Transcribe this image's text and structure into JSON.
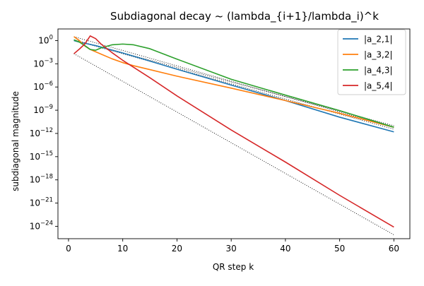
{
  "chart_data": {
    "type": "line",
    "title": "Subdiagonal decay ~ (lambda_{i+1}/lambda_i)^k",
    "xlabel": "QR step k",
    "ylabel": "subdiagonal magnitude",
    "xlim": [
      -1.95,
      62.95
    ],
    "ylog_exponent_lim": [
      -25.6,
      1.5
    ],
    "y_scale": "log",
    "x_ticks": [
      0,
      10,
      20,
      30,
      40,
      50,
      60
    ],
    "x_tick_labels": [
      "0",
      "10",
      "20",
      "30",
      "40",
      "50",
      "60"
    ],
    "y_tick_exponents": [
      0,
      -3,
      -6,
      -9,
      -12,
      -15,
      -18,
      -21,
      -24
    ],
    "y_tick_labels": [
      "10",
      "10",
      "10",
      "10",
      "10",
      "10",
      "10",
      "10",
      "10"
    ],
    "y_tick_superscripts": [
      "0",
      "−3",
      "−6",
      "−9",
      "−12",
      "−15",
      "−18",
      "−21",
      "−24"
    ],
    "grid": false,
    "legend_position": "top-right",
    "series": [
      {
        "name": "|a_2,1|",
        "color": "#1f77b4",
        "style": "solid",
        "points": [
          [
            1,
            0.0
          ],
          [
            2,
            -0.2
          ],
          [
            3,
            -0.35
          ],
          [
            5,
            -0.65
          ],
          [
            10,
            -1.6
          ],
          [
            20,
            -3.7
          ],
          [
            30,
            -5.75
          ],
          [
            40,
            -7.75
          ],
          [
            50,
            -9.9
          ],
          [
            60,
            -11.8
          ]
        ]
      },
      {
        "name": "|a_3,2|",
        "color": "#ff7f0e",
        "style": "solid",
        "points": [
          [
            1,
            0.5
          ],
          [
            2,
            0.0
          ],
          [
            3,
            -0.7
          ],
          [
            4,
            -1.15
          ],
          [
            6,
            -1.75
          ],
          [
            8,
            -2.35
          ],
          [
            10,
            -2.85
          ],
          [
            12,
            -3.25
          ],
          [
            15,
            -3.75
          ],
          [
            20,
            -4.6
          ],
          [
            30,
            -6.15
          ],
          [
            40,
            -7.75
          ],
          [
            50,
            -9.4
          ],
          [
            60,
            -11.2
          ]
        ]
      },
      {
        "name": "|a_4,3|",
        "color": "#2ca02c",
        "style": "solid",
        "points": [
          [
            1,
            0.1
          ],
          [
            2,
            -0.2
          ],
          [
            3,
            -0.65
          ],
          [
            4,
            -1.15
          ],
          [
            5,
            -1.25
          ],
          [
            6,
            -0.95
          ],
          [
            8,
            -0.55
          ],
          [
            10,
            -0.45
          ],
          [
            12,
            -0.55
          ],
          [
            15,
            -1.05
          ],
          [
            20,
            -2.4
          ],
          [
            30,
            -5.0
          ],
          [
            40,
            -7.05
          ],
          [
            50,
            -9.05
          ],
          [
            60,
            -11.2
          ]
        ]
      },
      {
        "name": "|a_5,4|",
        "color": "#d62728",
        "style": "solid",
        "points": [
          [
            1,
            -1.7
          ],
          [
            2,
            -1.1
          ],
          [
            3,
            -0.45
          ],
          [
            4,
            0.6
          ],
          [
            5,
            0.25
          ],
          [
            6,
            -0.45
          ],
          [
            8,
            -1.55
          ],
          [
            10,
            -2.55
          ],
          [
            15,
            -4.8
          ],
          [
            20,
            -7.15
          ],
          [
            30,
            -11.55
          ],
          [
            40,
            -15.7
          ],
          [
            50,
            -20.0
          ],
          [
            60,
            -24.1
          ]
        ]
      }
    ],
    "reference_lines": [
      {
        "color": "#000000",
        "style": "dotted",
        "points": [
          [
            1,
            0.05
          ],
          [
            60,
            -11.45
          ]
        ]
      },
      {
        "color": "#000000",
        "style": "dotted",
        "points": [
          [
            1,
            0.5
          ],
          [
            60,
            -11.2
          ]
        ]
      },
      {
        "color": "#000000",
        "style": "dotted",
        "points": [
          [
            1,
            0.1
          ],
          [
            60,
            -11.0
          ]
        ]
      },
      {
        "color": "#000000",
        "style": "dotted",
        "points": [
          [
            1,
            -1.7
          ],
          [
            60,
            -25.1
          ]
        ]
      }
    ]
  }
}
